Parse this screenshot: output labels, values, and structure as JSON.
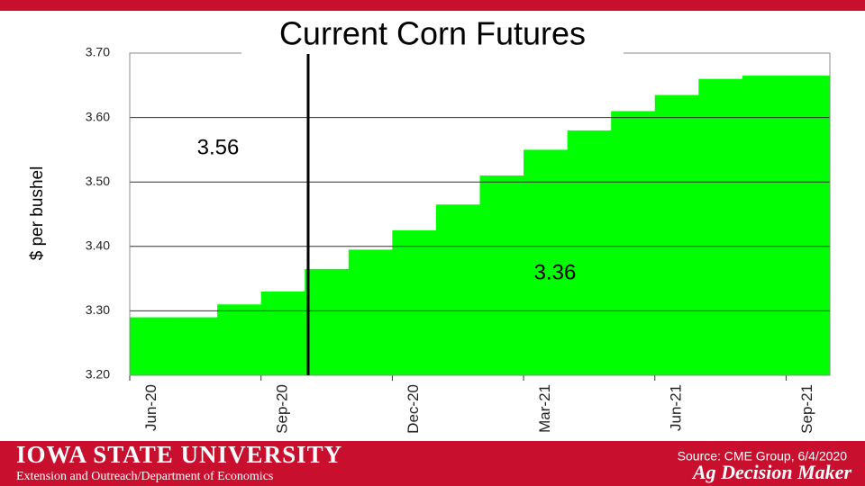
{
  "chart_data": {
    "type": "step-area",
    "title": "Current Corn Futures",
    "y_label": "$ per bushel",
    "categories": [
      "Jun-20",
      null,
      null,
      "Sep-20",
      null,
      null,
      "Dec-20",
      null,
      null,
      "Mar-21",
      null,
      null,
      "Jun-21",
      null,
      null,
      "Sep-21"
    ],
    "values": [
      3.29,
      3.29,
      3.31,
      3.33,
      3.365,
      3.395,
      3.425,
      3.465,
      3.51,
      3.55,
      3.58,
      3.61,
      3.635,
      3.66,
      3.665,
      3.665
    ],
    "color": "#00ff00",
    "ylim": [
      3.2,
      3.7
    ],
    "yticks": [
      {
        "value": 3.2,
        "label": "3.20"
      },
      {
        "value": 3.3,
        "label": "3.30"
      },
      {
        "value": 3.4,
        "label": "3.40"
      },
      {
        "value": 3.5,
        "label": "3.50"
      },
      {
        "value": 3.6,
        "label": "3.60"
      },
      {
        "value": 3.7,
        "label": "3.70"
      }
    ],
    "grid": true,
    "annotations": [
      "3.56",
      "3.36"
    ],
    "source": "Source: CME Group, 6/4/2020"
  },
  "footer": {
    "university": "Iowa State University",
    "department": "Extension and Outreach/Department of Economics",
    "brand": "Ag Decision Maker"
  }
}
